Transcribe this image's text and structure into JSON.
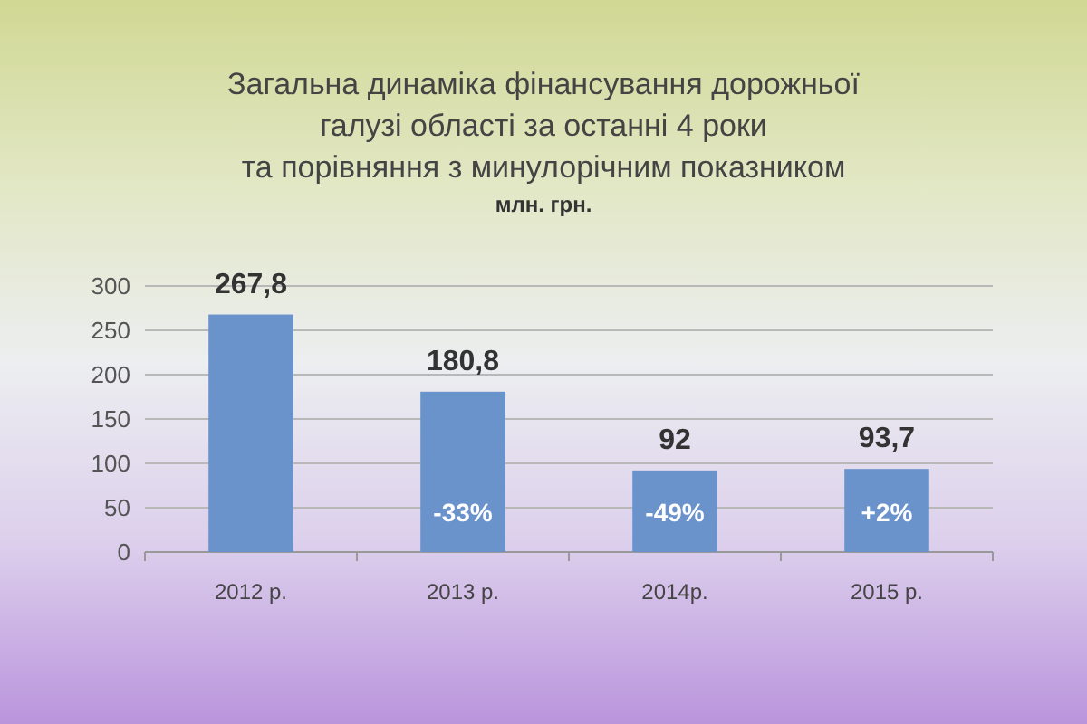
{
  "chart_data": {
    "type": "bar",
    "title": "Загальна динаміка фінансування дорожньої\nгалузі області за останні 4 роки\nта порівняння з минулорічним показником",
    "subtitle": "млн. грн.",
    "categories": [
      "2012 р.",
      "2013 р.",
      "2014р.",
      "2015 р."
    ],
    "values": [
      267.8,
      180.8,
      92,
      93.7
    ],
    "value_labels": [
      "267,8",
      "180,8",
      "92",
      "93,7"
    ],
    "color": "#6b93cb",
    "ylim": [
      0,
      300
    ],
    "yticks": [
      0,
      50,
      100,
      150,
      200,
      250,
      300
    ],
    "grid": true,
    "annotations": [
      "-33%",
      "-49%",
      "+2%"
    ]
  }
}
